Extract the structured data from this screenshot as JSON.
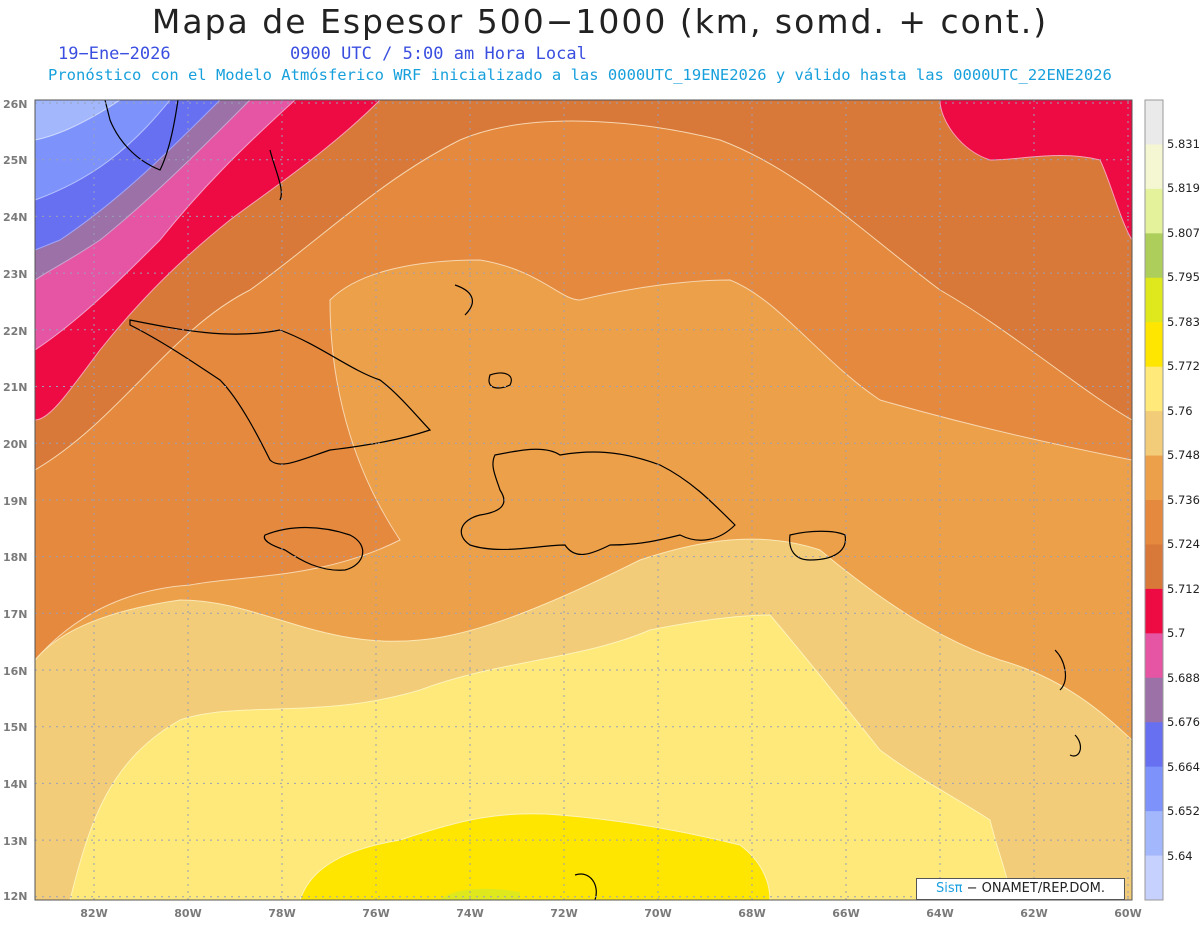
{
  "header": {
    "title": "Mapa de Espesor 500−1000 (km, somd. + cont.)",
    "date": "19−Ene−2026",
    "time": "0900 UTC / 5:00 am Hora Local",
    "subtitle": "Pronóstico con el Modelo Atmósferico WRF inicializado a las 0000UTC_19ENE2026 y válido hasta las  0000UTC_22ENE2026"
  },
  "axes": {
    "lat_labels": [
      "26N",
      "25N",
      "24N",
      "23N",
      "22N",
      "21N",
      "20N",
      "19N",
      "18N",
      "17N",
      "16N",
      "15N",
      "14N",
      "13N",
      "12N"
    ],
    "lon_labels": [
      "82W",
      "80W",
      "78W",
      "76W",
      "74W",
      "72W",
      "70W",
      "68W",
      "66W",
      "64W",
      "62W",
      "60W"
    ]
  },
  "colorbar": {
    "labels": [
      "5.831",
      "5.819",
      "5.807",
      "5.795",
      "5.783",
      "5.772",
      "5.76",
      "5.748",
      "5.736",
      "5.724",
      "5.712",
      "5.7",
      "5.688",
      "5.676",
      "5.664",
      "5.652",
      "5.64"
    ],
    "colors": [
      "#eaeaea",
      "#f4f7d2",
      "#e3f29b",
      "#adce5b",
      "#dfe81c",
      "#ffe600",
      "#ffe97a",
      "#f2cc78",
      "#eda04a",
      "#e4893d",
      "#d8793a",
      "#ee0b44",
      "#e555a3",
      "#9b71a8",
      "#6870f2",
      "#7d93fb",
      "#a3b7fd",
      "#c7d1fd"
    ]
  },
  "credit": {
    "brand": "Sisπ",
    "org": "− ONAMET/REP.DOM."
  }
}
